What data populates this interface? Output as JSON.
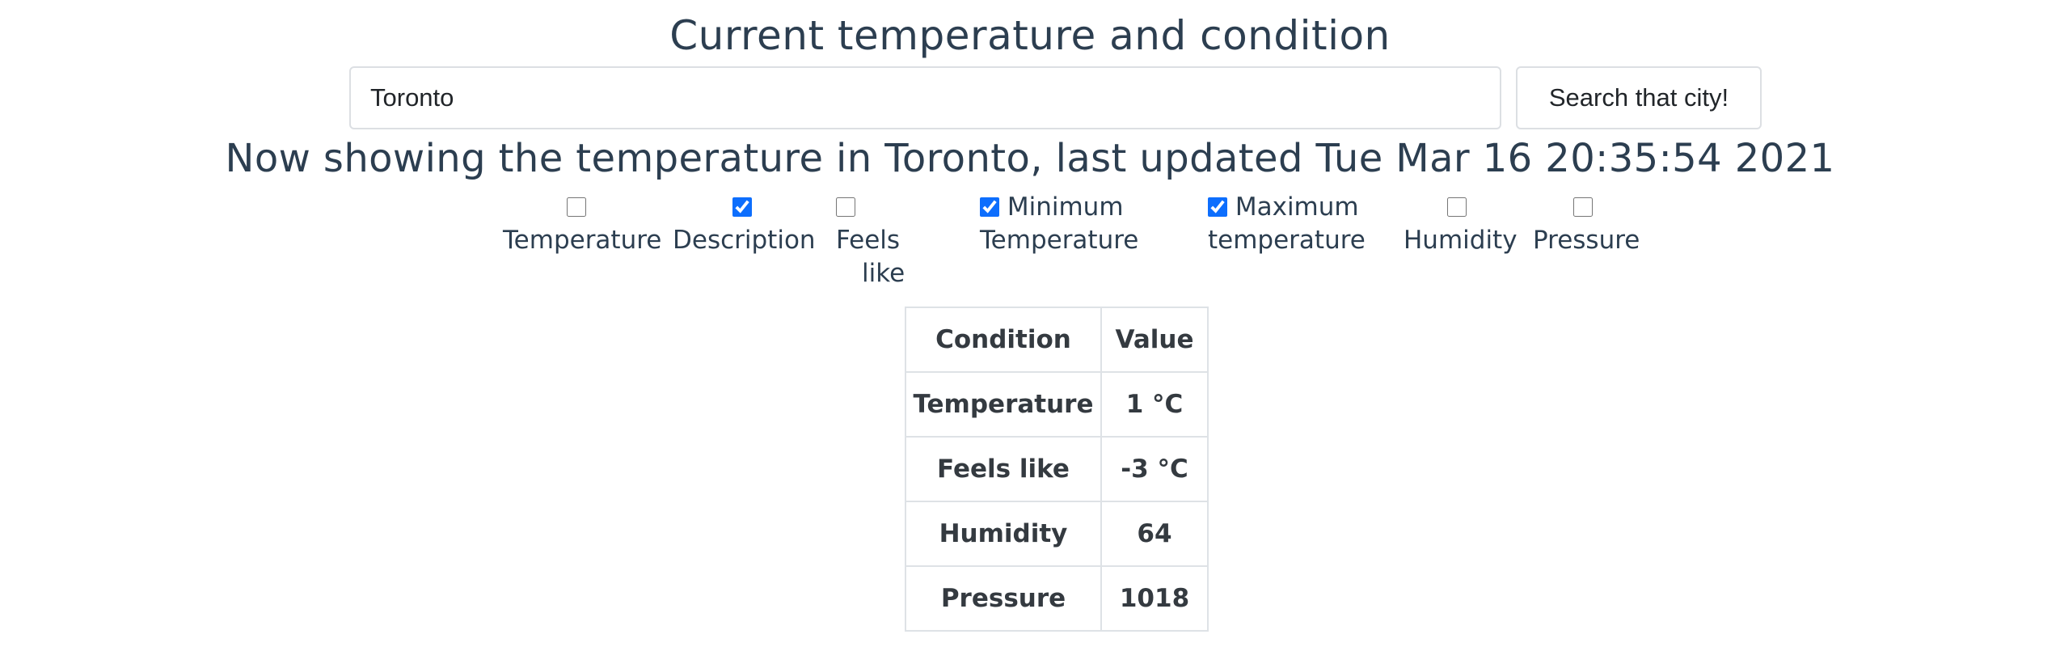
{
  "page": {
    "title": "Current temperature and condition"
  },
  "search": {
    "value": "Toronto",
    "button_label": "Search that city!"
  },
  "status": {
    "text": "Now showing the temperature in Toronto, last updated Tue Mar 16 20:35:54 2021"
  },
  "options": [
    {
      "label": "Temperature",
      "checked": false
    },
    {
      "label": "Description",
      "checked": true
    },
    {
      "label_line1": "Feels",
      "label_line2": "like",
      "checked": false
    },
    {
      "label_line1": "Minimum",
      "label_line2": "Temperature",
      "checked": true
    },
    {
      "label_line1": "Maximum",
      "label_line2": "temperature",
      "checked": true
    },
    {
      "label": "Humidity",
      "checked": false
    },
    {
      "label": "Pressure",
      "checked": false
    }
  ],
  "table": {
    "headers": [
      "Condition",
      "Value"
    ],
    "rows": [
      [
        "Temperature",
        "1 °C"
      ],
      [
        "Feels like",
        "-3 °C"
      ],
      [
        "Humidity",
        "64"
      ],
      [
        "Pressure",
        "1018"
      ]
    ]
  },
  "colors": {
    "text": "#2c3e50",
    "checkbox_accent": "#0d6efd",
    "border": "#dee2e6"
  }
}
